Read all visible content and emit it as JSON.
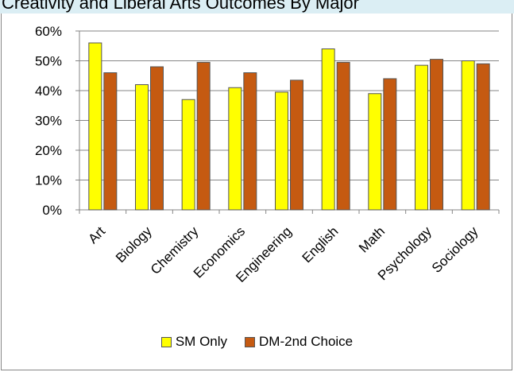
{
  "title": "Creativity and Liberal Arts Outcomes By Major",
  "colors": {
    "sm_only": "#ffff00",
    "dm_2nd": "#c55a11",
    "title_bg": "#dbeef4"
  },
  "chart_data": {
    "type": "bar",
    "title": "Creativity and Liberal Arts Outcomes By Major",
    "categories": [
      "Art",
      "Biology",
      "Chemistry",
      "Economics",
      "Engineering",
      "English",
      "Math",
      "Psychology",
      "Sociology"
    ],
    "series": [
      {
        "name": "SM Only",
        "values": [
          56,
          42,
          37,
          41,
          39.5,
          54,
          39,
          48.5,
          50
        ]
      },
      {
        "name": "DM-2nd Choice",
        "values": [
          46,
          48,
          49.5,
          46,
          43.5,
          49.5,
          44,
          50.5,
          49
        ]
      }
    ],
    "ylim": [
      0,
      60
    ],
    "yticks": [
      "0%",
      "10%",
      "20%",
      "30%",
      "40%",
      "50%",
      "60%"
    ],
    "grid": true,
    "legend": "bottom"
  }
}
